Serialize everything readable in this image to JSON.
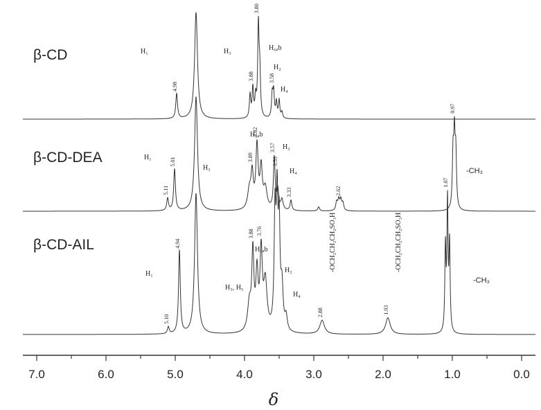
{
  "chart_data": {
    "type": "line",
    "xlabel": "δ",
    "xlim": [
      7.2,
      -0.2
    ],
    "x_reversed": true,
    "x_ticks": [
      {
        "value": 7.0,
        "label": "7.0"
      },
      {
        "value": 6.0,
        "label": "6.0"
      },
      {
        "value": 5.0,
        "label": "5.0"
      },
      {
        "value": 4.0,
        "label": "4.0"
      },
      {
        "value": 3.0,
        "label": "3.0"
      },
      {
        "value": 2.0,
        "label": "2.0"
      },
      {
        "value": 1.0,
        "label": "1.0"
      },
      {
        "value": 0.0,
        "label": "0.0"
      }
    ],
    "solvent_peak": 4.7,
    "panels": [
      {
        "name": "β-CD",
        "peaks": [
          {
            "shift": 4.98,
            "height": 0.24,
            "width": 0.015
          },
          {
            "shift": 3.92,
            "height": 0.22,
            "width": 0.012
          },
          {
            "shift": 3.88,
            "height": 0.28,
            "width": 0.012
          },
          {
            "shift": 3.84,
            "height": 0.18,
            "width": 0.012
          },
          {
            "shift": 3.8,
            "height": 0.86,
            "width": 0.012
          },
          {
            "shift": 3.78,
            "height": 0.4,
            "width": 0.012
          },
          {
            "shift": 3.6,
            "height": 0.22,
            "width": 0.012
          },
          {
            "shift": 3.58,
            "height": 0.24,
            "width": 0.012
          },
          {
            "shift": 3.54,
            "height": 0.15,
            "width": 0.012
          },
          {
            "shift": 3.5,
            "height": 0.17,
            "width": 0.012
          },
          {
            "shift": 3.46,
            "height": 0.06,
            "width": 0.012
          }
        ],
        "labels": [
          {
            "shift": 4.98,
            "text": "4.98"
          },
          {
            "shift": 3.88,
            "text": "3.88"
          },
          {
            "shift": 3.8,
            "text": "3.80"
          },
          {
            "shift": 3.58,
            "text": "3.58"
          }
        ],
        "notes": [
          {
            "text": "H₁",
            "at": 5.3
          },
          {
            "text": "H₃",
            "at": 4.1
          },
          {
            "text": "H₆ₐb",
            "at": 3.65
          },
          {
            "text": "H₂",
            "at": 3.3
          },
          {
            "text": "H₄",
            "at": 3.2
          }
        ]
      },
      {
        "name": "β-CD-DEA",
        "peaks": [
          {
            "shift": 5.11,
            "height": 0.12,
            "width": 0.015
          },
          {
            "shift": 5.01,
            "height": 0.4,
            "width": 0.015
          },
          {
            "shift": 3.93,
            "height": 0.18,
            "width": 0.03
          },
          {
            "shift": 3.89,
            "height": 0.32,
            "width": 0.02
          },
          {
            "shift": 3.82,
            "height": 0.6,
            "width": 0.02
          },
          {
            "shift": 3.76,
            "height": 0.38,
            "width": 0.02
          },
          {
            "shift": 3.7,
            "height": 0.2,
            "width": 0.03
          },
          {
            "shift": 3.57,
            "height": 0.5,
            "width": 0.015
          },
          {
            "shift": 3.52,
            "height": 0.18,
            "width": 0.015
          },
          {
            "shift": 3.46,
            "height": 0.1,
            "width": 0.02
          },
          {
            "shift": 3.33,
            "height": 0.1,
            "width": 0.015
          },
          {
            "shift": 2.93,
            "height": 0.04,
            "width": 0.015
          },
          {
            "shift": 2.67,
            "height": 0.08,
            "width": 0.015
          },
          {
            "shift": 2.64,
            "height": 0.1,
            "width": 0.015
          },
          {
            "shift": 2.61,
            "height": 0.1,
            "width": 0.015
          },
          {
            "shift": 2.58,
            "height": 0.07,
            "width": 0.015
          },
          {
            "shift": 0.99,
            "height": 0.5,
            "width": 0.012
          },
          {
            "shift": 0.97,
            "height": 0.65,
            "width": 0.012
          },
          {
            "shift": 0.95,
            "height": 0.5,
            "width": 0.012
          }
        ],
        "labels": [
          {
            "shift": 5.11,
            "text": "5.11"
          },
          {
            "shift": 5.01,
            "text": "5.01"
          },
          {
            "shift": 3.89,
            "text": "3.89"
          },
          {
            "shift": 3.82,
            "text": "3.82"
          },
          {
            "shift": 3.57,
            "text": "3.57"
          },
          {
            "shift": 3.33,
            "text": "3.33"
          },
          {
            "shift": 2.62,
            "text": "2.62"
          },
          {
            "shift": 0.97,
            "text": "0.97"
          }
        ],
        "notes": [
          {
            "text": "H₁",
            "at": 5.3
          },
          {
            "text": "H₆ₐb",
            "at": 3.8
          },
          {
            "text": "H₂",
            "at": 3.3
          },
          {
            "text": "H₃",
            "at": 4.3
          },
          {
            "text": "H₄",
            "at": 3.2
          },
          {
            "text": "-CH₃",
            "at": 0.6
          }
        ]
      },
      {
        "name": "β-CD-AIL",
        "peaks": [
          {
            "shift": 5.1,
            "height": 0.05,
            "width": 0.015
          },
          {
            "shift": 4.94,
            "height": 0.6,
            "width": 0.015
          },
          {
            "shift": 3.93,
            "height": 0.2,
            "width": 0.03
          },
          {
            "shift": 3.88,
            "height": 0.55,
            "width": 0.018
          },
          {
            "shift": 3.82,
            "height": 0.4,
            "width": 0.02
          },
          {
            "shift": 3.76,
            "height": 0.55,
            "width": 0.02
          },
          {
            "shift": 3.7,
            "height": 0.35,
            "width": 0.03
          },
          {
            "shift": 3.56,
            "height": 0.8,
            "width": 0.015
          },
          {
            "shift": 3.53,
            "height": 0.85,
            "width": 0.015
          },
          {
            "shift": 3.5,
            "height": 0.7,
            "width": 0.015
          },
          {
            "shift": 3.46,
            "height": 0.3,
            "width": 0.02
          },
          {
            "shift": 3.4,
            "height": 0.1,
            "width": 0.02
          },
          {
            "shift": 2.88,
            "height": 0.1,
            "width": 0.04
          },
          {
            "shift": 1.93,
            "height": 0.12,
            "width": 0.04
          },
          {
            "shift": 1.1,
            "height": 0.6,
            "width": 0.01
          },
          {
            "shift": 1.07,
            "height": 0.92,
            "width": 0.01
          },
          {
            "shift": 1.04,
            "height": 0.62,
            "width": 0.01
          }
        ],
        "labels": [
          {
            "shift": 5.1,
            "text": "5.10"
          },
          {
            "shift": 4.94,
            "text": "4.94"
          },
          {
            "shift": 3.88,
            "text": "3.88"
          },
          {
            "shift": 3.76,
            "text": "3.76"
          },
          {
            "shift": 3.53,
            "text": "3.53"
          },
          {
            "shift": 2.88,
            "text": "2.88"
          },
          {
            "shift": 1.93,
            "text": "1.93"
          },
          {
            "shift": 1.07,
            "text": "1.07"
          }
        ],
        "notes": [
          {
            "text": "H₁",
            "at": 5.35
          },
          {
            "text": "H₆ₐb",
            "at": 3.7
          },
          {
            "text": "H₃, H₅",
            "at": 4.2
          },
          {
            "text": "H₂",
            "at": 3.2
          },
          {
            "text": "H₄",
            "at": 3.2
          },
          {
            "text": "-OCH₂CH₂CH₂SO₃H",
            "at": 2.7
          },
          {
            "text": "-OCH₂CH₂CH₂SO₃H",
            "at": 1.75
          },
          {
            "text": "-CH₃",
            "at": 0.6
          }
        ]
      }
    ]
  },
  "colors": {
    "trace": "#333333",
    "text": "#222222",
    "background": "#ffffff"
  }
}
